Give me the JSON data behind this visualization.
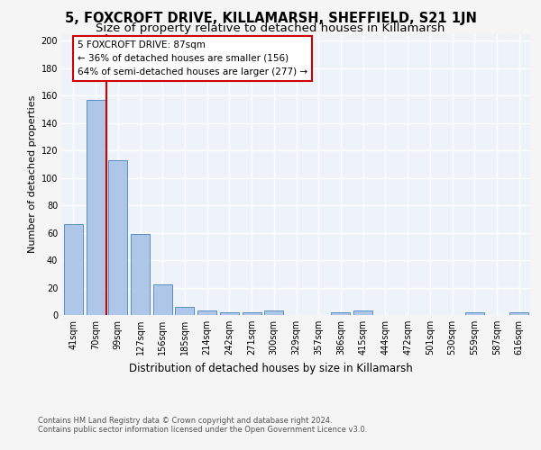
{
  "title1": "5, FOXCROFT DRIVE, KILLAMARSH, SHEFFIELD, S21 1JN",
  "title2": "Size of property relative to detached houses in Killamarsh",
  "xlabel": "Distribution of detached houses by size in Killamarsh",
  "ylabel": "Number of detached properties",
  "categories": [
    "41sqm",
    "70sqm",
    "99sqm",
    "127sqm",
    "156sqm",
    "185sqm",
    "214sqm",
    "242sqm",
    "271sqm",
    "300sqm",
    "329sqm",
    "357sqm",
    "386sqm",
    "415sqm",
    "444sqm",
    "472sqm",
    "501sqm",
    "530sqm",
    "559sqm",
    "587sqm",
    "616sqm"
  ],
  "values": [
    66,
    157,
    113,
    59,
    22,
    6,
    3,
    2,
    2,
    3,
    0,
    0,
    2,
    3,
    0,
    0,
    0,
    0,
    2,
    0,
    2
  ],
  "bar_color": "#aec6e8",
  "bar_edge_color": "#5a8fc4",
  "vline_x": 1.5,
  "annotation_text1": "5 FOXCROFT DRIVE: 87sqm",
  "annotation_text2": "← 36% of detached houses are smaller (156)",
  "annotation_text3": "64% of semi-detached houses are larger (277) →",
  "vline_color": "#cc0000",
  "annotation_box_color": "#ffffff",
  "annotation_box_edge": "#cc0000",
  "footer1": "Contains HM Land Registry data © Crown copyright and database right 2024.",
  "footer2": "Contains public sector information licensed under the Open Government Licence v3.0.",
  "ylim": [
    0,
    205
  ],
  "yticks": [
    0,
    20,
    40,
    60,
    80,
    100,
    120,
    140,
    160,
    180,
    200
  ],
  "bg_color": "#eef2f9",
  "grid_color": "#ffffff",
  "fig_bg_color": "#f5f5f5",
  "title1_fontsize": 10.5,
  "title2_fontsize": 9.5,
  "xlabel_fontsize": 8.5,
  "ylabel_fontsize": 8,
  "tick_fontsize": 7,
  "footer_fontsize": 6,
  "annotation_fontsize": 7.5
}
